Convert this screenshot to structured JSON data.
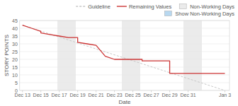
{
  "chart_data": {
    "type": "line",
    "xlabel": "Date",
    "ylabel": "STORY POINTS",
    "xlim": [
      -0.3,
      22.5
    ],
    "ylim": [
      0,
      45
    ],
    "xticks": [
      {
        "value": 0,
        "label": "Dec 13"
      },
      {
        "value": 2,
        "label": "Dec 15"
      },
      {
        "value": 4,
        "label": "Dec 17"
      },
      {
        "value": 6,
        "label": "Dec 19"
      },
      {
        "value": 8,
        "label": "Dec 21"
      },
      {
        "value": 10,
        "label": "Dec 23"
      },
      {
        "value": 12,
        "label": "Dec 25"
      },
      {
        "value": 14,
        "label": "Dec 27"
      },
      {
        "value": 16,
        "label": "Dec 29"
      },
      {
        "value": 18,
        "label": "Dec 31"
      },
      {
        "value": 22,
        "label": "Jan 3"
      }
    ],
    "yticks": [
      0,
      5,
      10,
      15,
      20,
      25,
      30,
      35,
      40,
      45
    ],
    "grid": true,
    "legend": "upper right",
    "series": [
      {
        "name": "Guideline",
        "type": "line",
        "color": "#c8c8c8",
        "line_style": "dashed",
        "x": [
          0,
          22
        ],
        "values": [
          42,
          0
        ]
      },
      {
        "name": "Remaining Values",
        "type": "line",
        "color": "#cc3333",
        "line_style": "solid",
        "x": [
          0,
          1,
          2,
          2,
          3,
          4,
          4,
          5,
          6,
          6,
          7,
          7,
          8,
          8,
          9,
          9,
          10,
          10,
          11,
          12,
          13,
          13,
          14,
          14,
          16,
          16,
          17,
          22
        ],
        "values": [
          42,
          40,
          38,
          37,
          36,
          35,
          35,
          34,
          34,
          31,
          30,
          30,
          29,
          29,
          22,
          22,
          20,
          20,
          20,
          20,
          20,
          19,
          19,
          19,
          19,
          11,
          11,
          11
        ]
      },
      {
        "name": "Non-Working Days",
        "type": "span",
        "color": "#ebebeb",
        "ranges": [
          [
            3.8,
            5.8
          ],
          [
            10.8,
            12.8
          ],
          [
            17.5,
            19.5
          ]
        ]
      },
      {
        "name": "Show Non-Working Days",
        "type": "toggle",
        "color": "#b8d8f0"
      }
    ]
  }
}
